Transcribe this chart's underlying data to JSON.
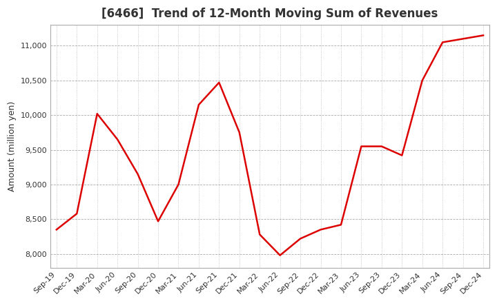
{
  "title": "[6466]  Trend of 12-Month Moving Sum of Revenues",
  "ylabel": "Amount (million yen)",
  "line_color": "#dd0000",
  "background_color": "#ffffff",
  "plot_bg_color": "#ffffff",
  "x_labels": [
    "Sep-19",
    "Dec-19",
    "Mar-20",
    "Jun-20",
    "Sep-20",
    "Dec-20",
    "Mar-21",
    "Jun-21",
    "Sep-21",
    "Dec-21",
    "Mar-22",
    "Jun-22",
    "Sep-22",
    "Dec-22",
    "Mar-23",
    "Jun-23",
    "Sep-23",
    "Dec-23",
    "Mar-24",
    "Jun-24",
    "Sep-24",
    "Dec-24"
  ],
  "values": [
    8350,
    8580,
    10020,
    9650,
    9150,
    8470,
    9000,
    10150,
    10470,
    9750,
    8280,
    7980,
    8220,
    8350,
    8420,
    9550,
    9550,
    9420,
    10500,
    11050,
    11100,
    11150
  ],
  "ylim": [
    7800,
    11300
  ],
  "yticks": [
    8000,
    8500,
    9000,
    9500,
    10000,
    10500,
    11000
  ],
  "title_fontsize": 12,
  "tick_fontsize": 8,
  "ylabel_fontsize": 9
}
